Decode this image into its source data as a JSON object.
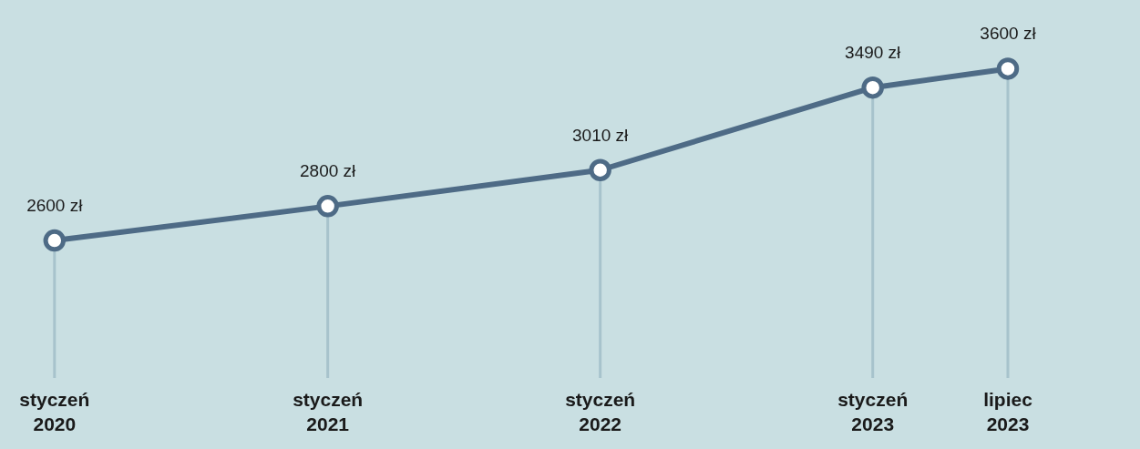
{
  "chart_data": {
    "type": "line",
    "x": [
      "2020-01",
      "2021-01",
      "2022-01",
      "2023-01",
      "2023-07"
    ],
    "series": [
      {
        "color": "#4e6b86",
        "values": [
          2600,
          2800,
          3010,
          3490,
          3600
        ],
        "value_labels": [
          "2600 zł",
          "2800 zł",
          "3010 zł",
          "3490 zł",
          "3600 zł"
        ]
      }
    ],
    "xlim": [
      "2019-10-20",
      "2023-12-25"
    ],
    "xticks": [
      {
        "value": "2020-01",
        "label": "styczeń\n2020"
      },
      {
        "value": "2021-01",
        "label": "styczeń\n2021"
      },
      {
        "value": "2022-01",
        "label": "styczeń\n2022"
      },
      {
        "value": "2023-01",
        "label": "styczeń\n2023"
      },
      {
        "value": "2023-07",
        "label": "lipiec\n2023"
      }
    ],
    "ylim": [
      1800,
      4000
    ],
    "marker": "circle",
    "line_style": "solid",
    "tick_labels": "x",
    "grid": false,
    "ref_lines": [
      {
        "axis": "x",
        "value": "2020-01",
        "color": "#a7c3cc"
      },
      {
        "axis": "x",
        "value": "2021-01",
        "color": "#a7c3cc"
      },
      {
        "axis": "x",
        "value": "2022-01",
        "color": "#a7c3cc"
      },
      {
        "axis": "x",
        "value": "2023-01",
        "color": "#a7c3cc"
      },
      {
        "axis": "x",
        "value": "2023-07",
        "color": "#a7c3cc"
      }
    ]
  }
}
